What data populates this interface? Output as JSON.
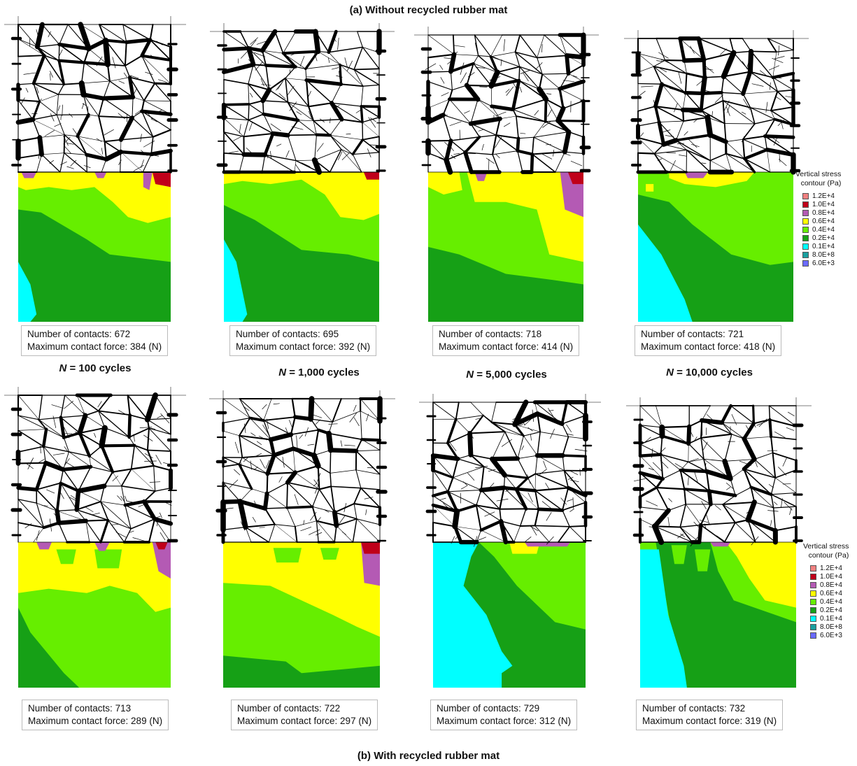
{
  "titles": {
    "top": "(a) Without recycled rubber mat",
    "bottom": "(b) With recycled rubber mat"
  },
  "cycle_labels": [
    {
      "n": "N",
      "text": " = 100 cycles"
    },
    {
      "n": "N",
      "text": " = 1,000 cycles"
    },
    {
      "n": "N",
      "text": " = 5,000 cycles"
    },
    {
      "n": "N",
      "text": " = 10,000 cycles"
    }
  ],
  "legend": {
    "title_line1": "Vertical stress",
    "title_line2": "contour (Pa)",
    "entries": [
      {
        "label": "1.2E+4",
        "color": "#f08080"
      },
      {
        "label": "1.0E+4",
        "color": "#c0001a"
      },
      {
        "label": "0.8E+4",
        "color": "#b45ab4"
      },
      {
        "label": "0.6E+4",
        "color": "#ffff00"
      },
      {
        "label": "0.4E+4",
        "color": "#66ee00"
      },
      {
        "label": "0.2E+4",
        "color": "#16a016"
      },
      {
        "label": "0.1E+4",
        "color": "#00ffff"
      },
      {
        "label": "8.0E+8",
        "color": "#1aa0a0"
      },
      {
        "label": "6.0E+3",
        "color": "#6a6aff"
      }
    ]
  },
  "info_template": {
    "contacts_label": "Number  of contacts: ",
    "force_label": "Maximum  contact force: ",
    "force_unit": " (N)"
  },
  "panels": {
    "without": [
      {
        "contacts": "672",
        "force": "384"
      },
      {
        "contacts": "695",
        "force": "392"
      },
      {
        "contacts": "718",
        "force": "414"
      },
      {
        "contacts": "721",
        "force": "418"
      }
    ],
    "with": [
      {
        "contacts": "713",
        "force": "289"
      },
      {
        "contacts": "722",
        "force": "297"
      },
      {
        "contacts": "729",
        "force": "312"
      },
      {
        "contacts": "732",
        "force": "319"
      }
    ]
  },
  "colors": {
    "yellow": "#ffff00",
    "light_green": "#66ee00",
    "green": "#16a016",
    "cyan": "#00ffff",
    "purple": "#b45ab4",
    "red": "#c0001a",
    "network": "#000000"
  }
}
